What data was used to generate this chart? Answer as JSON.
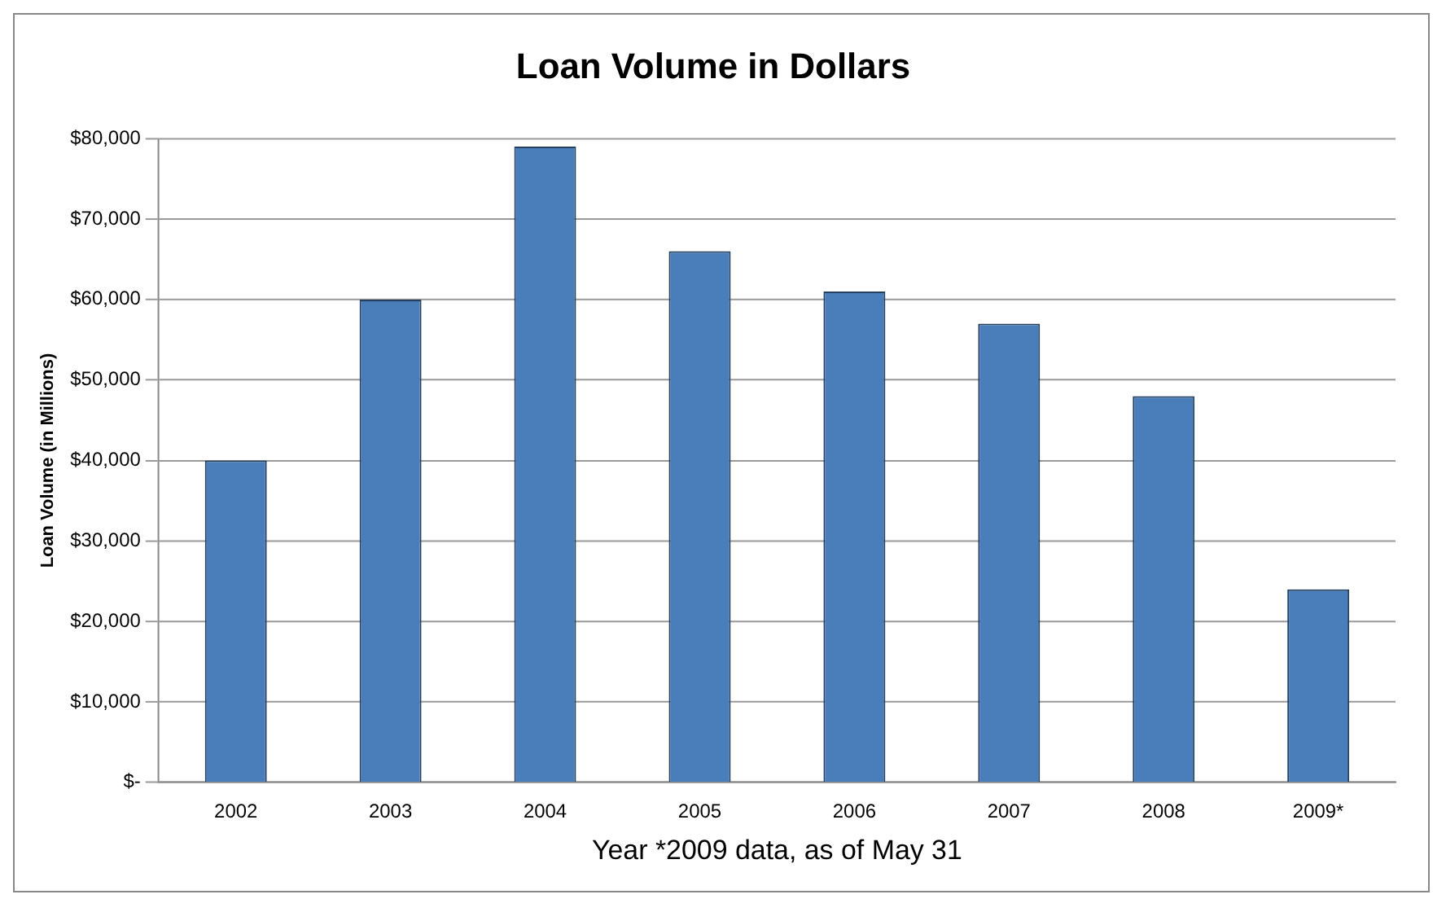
{
  "chart_data": {
    "type": "bar",
    "title": "Loan Volume in Dollars",
    "xlabel": "Year *2009 data, as of May 31",
    "ylabel": "Loan Volume (in Millions)",
    "categories": [
      "2002",
      "2003",
      "2004",
      "2005",
      "2006",
      "2007",
      "2008",
      "2009*"
    ],
    "values": [
      40000,
      60000,
      79000,
      66000,
      61000,
      57000,
      48000,
      24000
    ],
    "color": "#4a7ebb",
    "ylim": [
      0,
      80000
    ],
    "yticks": [
      {
        "value": 0,
        "label": "$-"
      },
      {
        "value": 10000,
        "label": "$10,000"
      },
      {
        "value": 20000,
        "label": "$20,000"
      },
      {
        "value": 30000,
        "label": "$30,000"
      },
      {
        "value": 40000,
        "label": "$40,000"
      },
      {
        "value": 50000,
        "label": "$50,000"
      },
      {
        "value": 60000,
        "label": "$60,000"
      },
      {
        "value": 70000,
        "label": "$70,000"
      },
      {
        "value": 80000,
        "label": "$80,000"
      }
    ],
    "grid": "y"
  }
}
